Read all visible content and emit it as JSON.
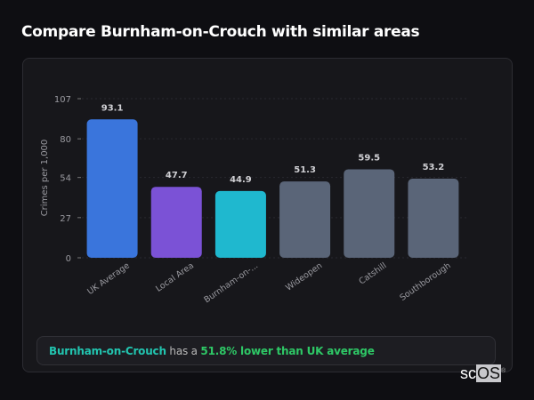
{
  "header": {
    "title": "Compare Burnham-on-Crouch with similar areas"
  },
  "chart_data": {
    "type": "bar",
    "title": "",
    "xlabel": "",
    "ylabel": "Crimes per 1,000",
    "ylim": [
      0,
      107
    ],
    "yticks": [
      0,
      27,
      54,
      80,
      107
    ],
    "grid": true,
    "categories": [
      "UK Average",
      "Local Area",
      "Burnham-on-...",
      "Wideopen",
      "Catshill",
      "Southborough"
    ],
    "values": [
      93.1,
      47.7,
      44.9,
      51.3,
      59.5,
      53.2
    ],
    "value_labels": [
      "93.1",
      "47.7",
      "44.9",
      "51.3",
      "59.5",
      "53.2"
    ],
    "colors": [
      "#3a75dc",
      "#7b52d6",
      "#1fb8cf",
      "#5a6578",
      "#5a6578",
      "#5a6578"
    ]
  },
  "summary": {
    "area": "Burnham-on-Crouch",
    "middle": " has a ",
    "stat": "51.8% lower than UK average"
  },
  "logo": {
    "text_a": "sc",
    "text_b": "OS",
    "mark": "®"
  }
}
